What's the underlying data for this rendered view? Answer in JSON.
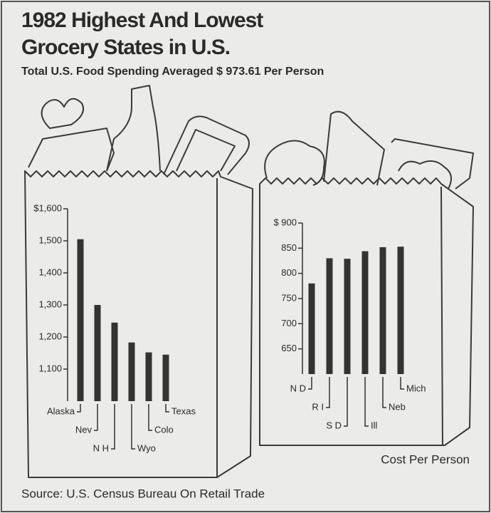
{
  "title": [
    "1982 Highest And Lowest",
    "Grocery States in U.S."
  ],
  "subtitle": "Total U.S. Food Spending Averaged $ 973.61 Per Person",
  "note": "Cost Per Person",
  "source": "Source: U.S. Census Bureau On Retail Trade",
  "chart_data": [
    {
      "type": "bar",
      "categories": [
        "Alaska",
        "Nev",
        "N H",
        "Wyo",
        "Colo",
        "Texas"
      ],
      "values": [
        1505,
        1300,
        1245,
        1183,
        1152,
        1145
      ],
      "color": "#333333",
      "ylim": [
        1000,
        1600
      ],
      "yticks": [
        {
          "value": 1100,
          "label": "1,100"
        },
        {
          "value": 1200,
          "label": "1,200"
        },
        {
          "value": 1300,
          "label": "1,300"
        },
        {
          "value": 1400,
          "label": "1,400"
        },
        {
          "value": 1500,
          "label": "1,500"
        },
        {
          "value": 1600,
          "label": "$1,600"
        }
      ],
      "grid": false
    },
    {
      "type": "bar",
      "categories": [
        "N D",
        "R I",
        "S D",
        "Ill",
        "Neb",
        "Mich"
      ],
      "values": [
        780,
        830,
        829,
        844,
        852,
        853
      ],
      "color": "#333333",
      "ylim": [
        600,
        900
      ],
      "yticks": [
        650,
        700,
        750,
        800,
        850,
        {
          "value": 900,
          "label": "$ 900"
        }
      ],
      "grid": false
    }
  ]
}
